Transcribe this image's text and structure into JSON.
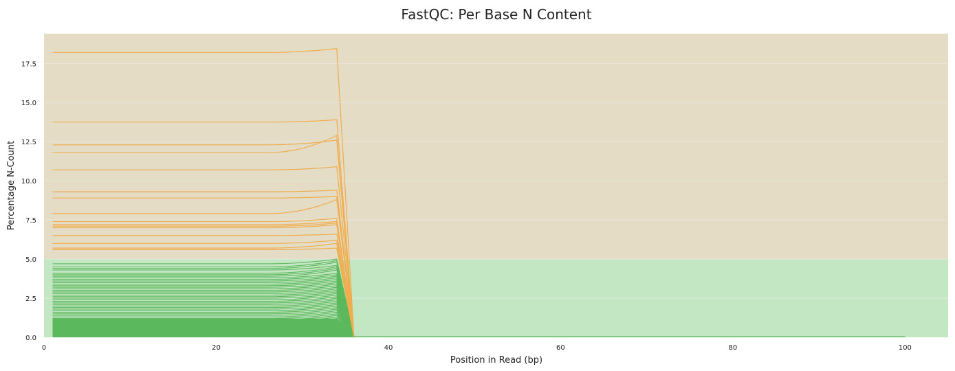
{
  "chart_data": {
    "type": "line",
    "title": "FastQC: Per Base N Content",
    "xlabel": "Position in Read (bp)",
    "ylabel": "Percentage N-Count",
    "xlim": [
      0,
      105
    ],
    "ylim": [
      0,
      19.4
    ],
    "xticks": [
      0,
      20,
      40,
      60,
      80,
      100
    ],
    "yticks": [
      0.0,
      2.5,
      5.0,
      7.5,
      10.0,
      12.5,
      15.0,
      17.5
    ],
    "xtick_labels": [
      "0",
      "20",
      "40",
      "60",
      "80",
      "100"
    ],
    "ytick_labels": [
      "0.0",
      "2.5",
      "5.0",
      "7.5",
      "10.0",
      "12.5",
      "15.0",
      "17.5"
    ],
    "grid": true,
    "legend": "none",
    "zones": [
      {
        "name": "pass",
        "from": 0,
        "to": 5,
        "color": "#c3e6c3"
      },
      {
        "name": "warn",
        "from": 5,
        "to": 19.4,
        "color": "#e4dcc4"
      }
    ],
    "colors": {
      "pass": "#5cb85c",
      "warn": "#f0ad4e",
      "tail": "#5cb85c",
      "grid": "#ececec"
    },
    "peak_x": 34,
    "zero_x": 36,
    "x_end": 100,
    "warn_series_levels": [
      18.2,
      13.75,
      12.3,
      11.8,
      10.7,
      9.3,
      8.9,
      7.9,
      7.4,
      7.2,
      7.1,
      7.0,
      6.5,
      6.0,
      5.7,
      5.6
    ],
    "warn_series_peaks": [
      18.45,
      13.9,
      12.6,
      12.9,
      10.9,
      9.4,
      9.0,
      8.8,
      7.6,
      7.4,
      7.3,
      7.2,
      6.6,
      6.2,
      6.0,
      5.7
    ],
    "pass_series_levels": [
      4.7,
      4.5,
      4.4,
      4.3,
      4.1,
      4.0,
      3.9,
      3.8,
      3.7,
      3.6,
      3.5,
      3.4,
      3.3,
      3.2,
      3.1,
      3.0,
      2.9,
      2.8,
      2.7,
      2.6,
      2.5,
      2.4,
      2.3,
      2.2,
      2.1,
      2.0,
      1.9,
      1.8,
      1.7,
      1.6,
      1.5,
      1.4,
      1.3,
      1.2,
      1.1,
      1.0,
      0.9,
      0.8,
      0.7,
      0.6,
      0.5,
      0.4,
      0.3,
      0.2
    ],
    "pass_series_peaks": [
      5.0,
      4.9,
      4.8,
      4.6,
      4.5,
      4.4,
      4.3,
      4.1,
      4.0,
      3.9,
      3.8,
      3.7,
      3.6,
      3.5,
      3.4,
      3.3,
      3.2,
      3.1,
      3.0,
      2.9,
      2.8,
      2.7,
      2.6,
      2.5,
      2.4,
      2.3,
      2.2,
      2.1,
      2.0,
      1.9,
      1.8,
      1.7,
      1.6,
      1.5,
      1.4,
      1.3,
      1.2,
      1.1,
      1.0,
      0.9,
      0.8,
      0.7,
      0.6,
      0.5
    ]
  }
}
